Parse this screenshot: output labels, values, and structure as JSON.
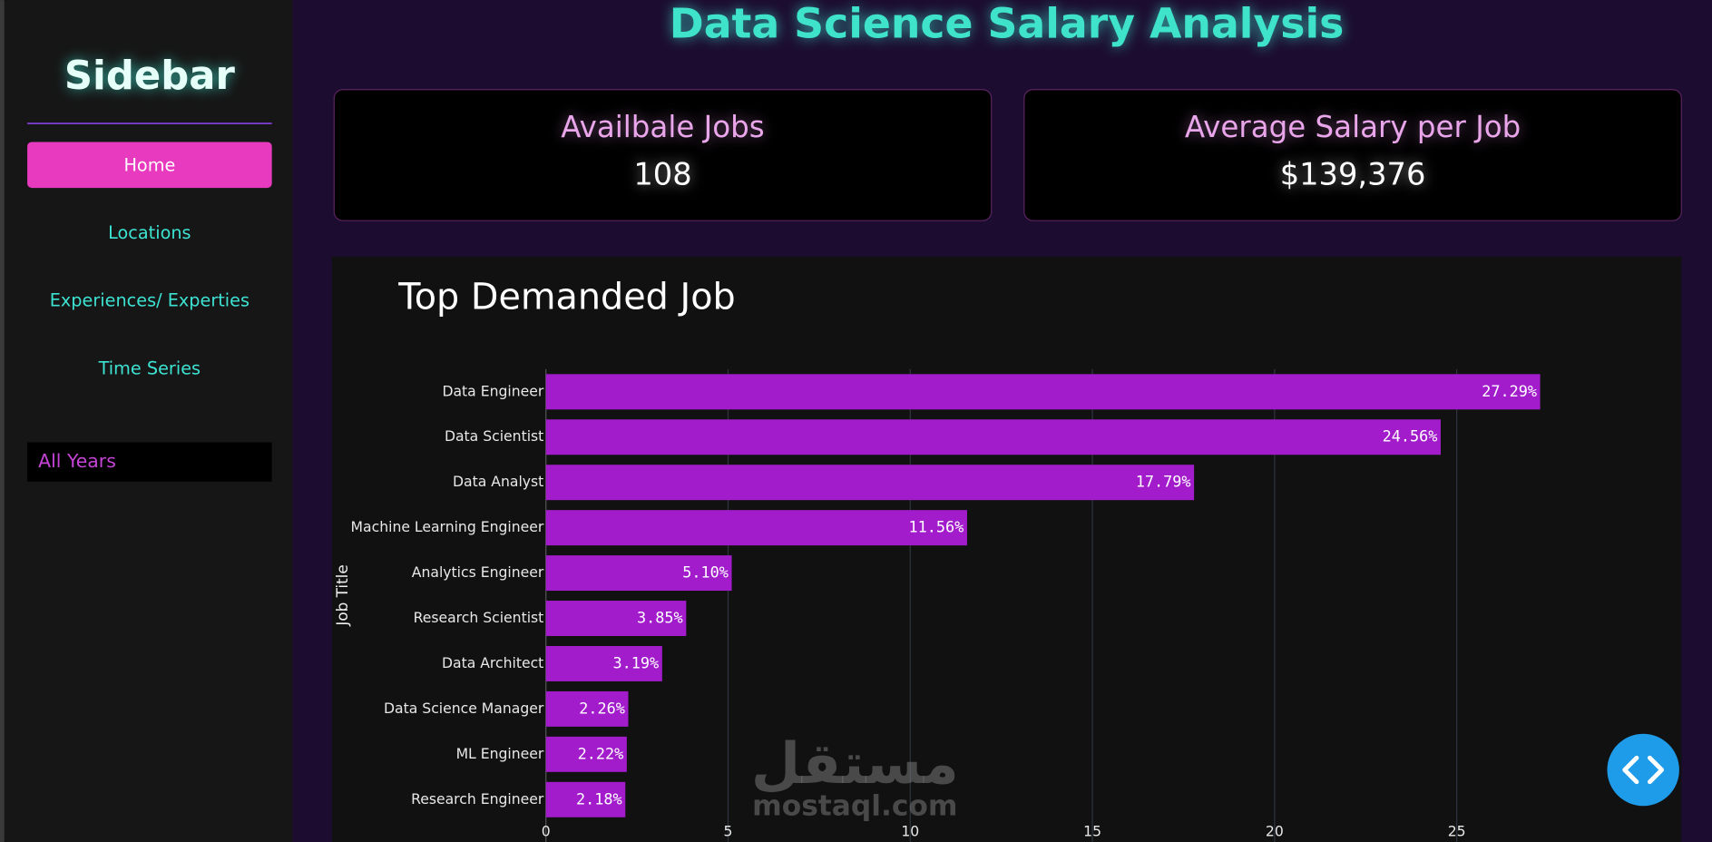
{
  "sidebar": {
    "title": "Sidebar",
    "nav": [
      "Home",
      "Locations",
      "Experiences/ Experties",
      "Time Series"
    ],
    "filter": "All Years"
  },
  "header": {
    "title": "Data Science Salary Analysis"
  },
  "cards": [
    {
      "title": "Availbale Jobs",
      "value": "108"
    },
    {
      "title": "Average Salary per Job",
      "value": "$139,376"
    }
  ],
  "watermark": {
    "arabic": "مستقل",
    "latin": "mostaql.com"
  },
  "chart_data": {
    "type": "bar",
    "orientation": "horizontal",
    "title": "Top Demanded Job",
    "y_label": "Job Title",
    "categories": [
      "Data Engineer",
      "Data Scientist",
      "Data Analyst",
      "Machine Learning Engineer",
      "Analytics Engineer",
      "Research Scientist",
      "Data Architect",
      "Data Science Manager",
      "ML Engineer",
      "Research Engineer"
    ],
    "values": [
      27.29,
      24.56,
      17.79,
      11.56,
      5.1,
      3.85,
      3.19,
      2.26,
      2.22,
      2.18
    ],
    "value_labels": [
      "27.29%",
      "24.56%",
      "17.79%",
      "11.56%",
      "5.10%",
      "3.85%",
      "3.19%",
      "2.26%",
      "2.22%",
      "2.18%"
    ],
    "color": "#a21ccb",
    "xlim": [
      0,
      28.65
    ],
    "xticks": [
      0,
      5,
      10,
      15,
      20,
      25
    ],
    "grid": true
  }
}
